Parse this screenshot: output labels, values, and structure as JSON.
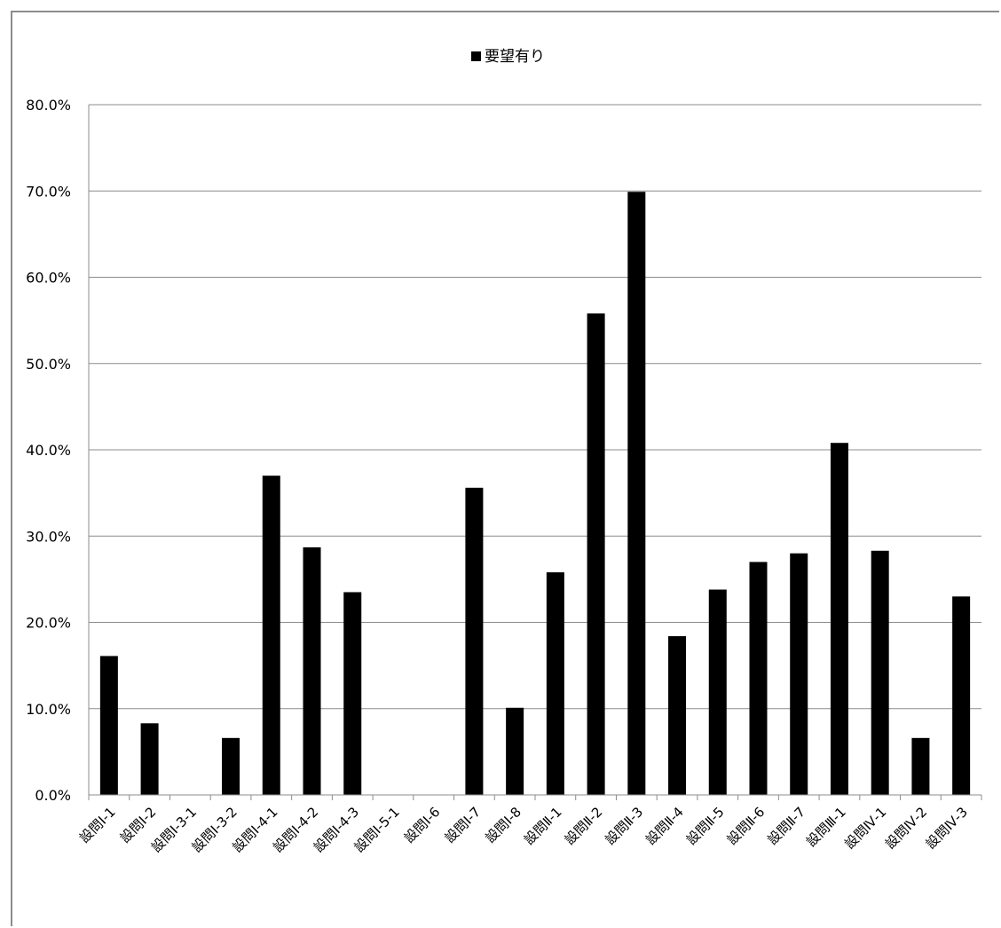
{
  "chart_data": {
    "type": "bar",
    "title": "",
    "xlabel": "",
    "ylabel": "",
    "ylim": [
      0,
      0.8
    ],
    "y_ticks": [
      "0.0%",
      "10.0%",
      "20.0%",
      "30.0%",
      "40.0%",
      "50.0%",
      "60.0%",
      "70.0%",
      "80.0%"
    ],
    "grid": true,
    "legend_position": "top",
    "bar_color": "#000000",
    "categories": [
      "設問Ⅰ-1",
      "設問Ⅰ-2",
      "設問Ⅰ-3-1",
      "設問Ⅰ-3-2",
      "設問Ⅰ-4-1",
      "設問Ⅰ-4-2",
      "設問Ⅰ-4-3",
      "設問Ⅰ-5-1",
      "設問Ⅰ-6",
      "設問Ⅰ-7",
      "設問Ⅰ-8",
      "設問Ⅱ-1",
      "設問Ⅱ-2",
      "設問Ⅱ-3",
      "設問Ⅱ-4",
      "設問Ⅱ-5",
      "設問Ⅱ-6",
      "設問Ⅱ-7",
      "設問Ⅲ-1",
      "設問Ⅳ-1",
      "設問Ⅳ-2",
      "設問Ⅳ-3"
    ],
    "series": [
      {
        "name": "要望有り",
        "values": [
          0.161,
          0.083,
          0,
          0.066,
          0.37,
          0.287,
          0.235,
          0,
          0,
          0.356,
          0.101,
          0.258,
          0.558,
          0.699,
          0.184,
          0.238,
          0.27,
          0.28,
          0.408,
          0.283,
          0.066,
          0.23
        ]
      }
    ]
  }
}
